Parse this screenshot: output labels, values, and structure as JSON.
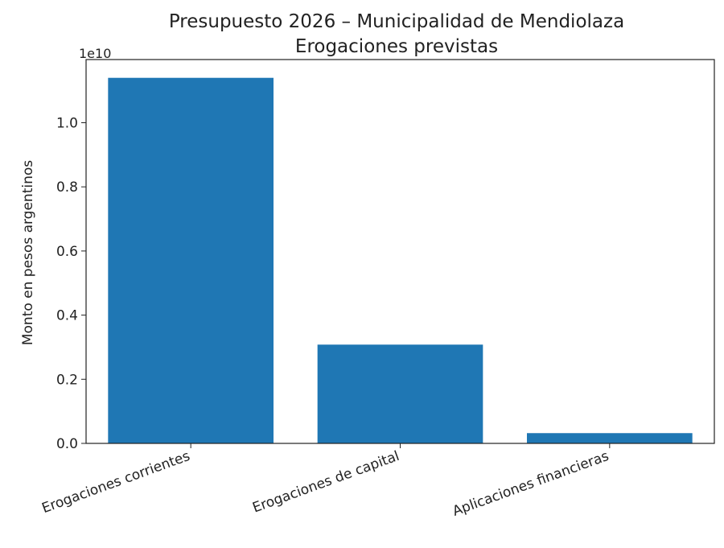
{
  "chart_data": {
    "type": "bar",
    "title": "Presupuesto 2026 – Municipalidad de Mendiolaza",
    "subtitle": "Erogaciones previstas",
    "ylabel": "Monto en pesos argentinos",
    "xlabel": "",
    "y_offset_label": "1e10",
    "categories": [
      "Erogaciones corrientes",
      "Erogaciones de capital",
      "Aplicaciones financieras"
    ],
    "values": [
      11400000000,
      3080000000,
      320000000
    ],
    "ylim": [
      0,
      11970000000
    ],
    "yticks": [
      0.0,
      0.2,
      0.4,
      0.6,
      0.8,
      1.0
    ],
    "ytick_labels": [
      "0.0",
      "0.2",
      "0.4",
      "0.6",
      "0.8",
      "1.0"
    ],
    "y_scale": 10000000000,
    "bar_color": "#1f77b4",
    "grid": false,
    "legend": "none"
  }
}
